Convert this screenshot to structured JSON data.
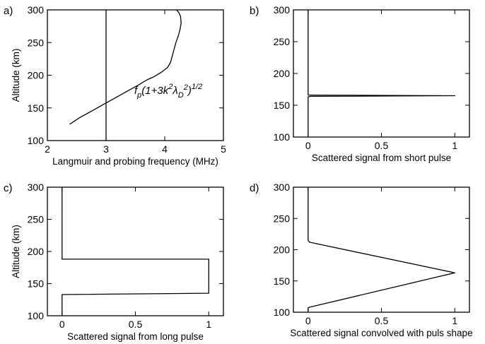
{
  "chart_data": [
    {
      "type": "line",
      "panel_label": "a)",
      "xlabel": "Langmuir and probing frequency (MHz)",
      "ylabel": "Altitude (km)",
      "xlim": [
        2,
        5
      ],
      "ylim": [
        100,
        300
      ],
      "xticks": [
        2,
        3,
        4,
        5
      ],
      "yticks": [
        100,
        150,
        200,
        250,
        300
      ],
      "grid": false,
      "annotation": "f_p(1+3k^2λ_D^2)^1/2",
      "series": [
        {
          "role": "langmuir-frequency",
          "x": [
            2.38,
            2.55,
            2.75,
            2.95,
            3.15,
            3.35,
            3.55,
            3.7,
            3.82,
            3.95,
            4.05,
            4.1,
            4.13,
            4.16,
            4.19,
            4.23,
            4.26,
            4.28,
            4.27,
            4.24,
            4.2
          ],
          "y": [
            125,
            135,
            145,
            155,
            165,
            175,
            185,
            193,
            198,
            205,
            212,
            220,
            230,
            240,
            250,
            260,
            270,
            280,
            290,
            296,
            300
          ]
        },
        {
          "role": "probing-frequency",
          "x": [
            3,
            3
          ],
          "y": [
            100,
            300
          ]
        }
      ]
    },
    {
      "type": "line",
      "panel_label": "b)",
      "xlabel": "Scattered signal from short pulse",
      "ylabel": "",
      "xlim": [
        -0.1,
        1.1
      ],
      "ylim": [
        100,
        300
      ],
      "xticks": [
        0,
        0.5,
        1
      ],
      "yticks": [
        100,
        150,
        200,
        250,
        300
      ],
      "grid": false,
      "series": [
        {
          "role": "short-pulse-signal",
          "x": [
            0,
            0,
            0.015,
            1,
            0.015,
            0,
            0
          ],
          "y": [
            300,
            166,
            166,
            165,
            164,
            163,
            100
          ]
        }
      ]
    },
    {
      "type": "line",
      "panel_label": "c)",
      "xlabel": "Scattered signal from long pulse",
      "ylabel": "Altitude (km)",
      "xlim": [
        -0.1,
        1.1
      ],
      "ylim": [
        100,
        300
      ],
      "xticks": [
        0,
        0.5,
        1
      ],
      "yticks": [
        100,
        150,
        200,
        250,
        300
      ],
      "grid": false,
      "series": [
        {
          "role": "long-pulse-signal",
          "x": [
            0,
            0,
            1,
            1,
            0,
            0
          ],
          "y": [
            300,
            188,
            188,
            135,
            133,
            100
          ]
        }
      ]
    },
    {
      "type": "line",
      "panel_label": "d)",
      "xlabel": "Scattered signal convolved with puls shape",
      "ylabel": "",
      "xlim": [
        -0.1,
        1.1
      ],
      "ylim": [
        100,
        300
      ],
      "xticks": [
        0,
        0.5,
        1
      ],
      "yticks": [
        100,
        150,
        200,
        250,
        300
      ],
      "grid": false,
      "series": [
        {
          "role": "convolved-signal",
          "x": [
            0,
            0,
            0.01,
            1,
            0.01,
            0,
            0
          ],
          "y": [
            300,
            215,
            212,
            163,
            108,
            107,
            100
          ]
        }
      ]
    }
  ]
}
